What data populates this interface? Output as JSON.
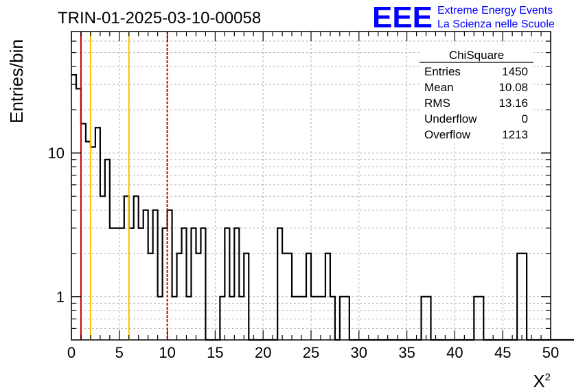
{
  "header": {
    "run_title": "TRIN-01-2025-03-10-00058",
    "logo_text": "EEE",
    "logo_line1": "Extreme Energy Events",
    "logo_line2": "La Scienza nelle Scuole"
  },
  "colors": {
    "red": "#cc0000",
    "orange": "#f5c400",
    "logo_blue": "#0000ff",
    "grid": "#b0b0b0"
  },
  "stats": {
    "title": "ChiSquare",
    "rows": [
      {
        "label": "Entries",
        "value": "1450"
      },
      {
        "label": "Mean",
        "value": "10.08"
      },
      {
        "label": "RMS",
        "value": "13.16"
      },
      {
        "label": "Underflow",
        "value": "0"
      },
      {
        "label": "Overflow",
        "value": "1213"
      }
    ]
  },
  "chart_data": {
    "type": "histogram",
    "title": "TRIN-01-2025-03-10-00058",
    "xlabel": "X",
    "xlabel_superscript": "2",
    "ylabel": "Entries/bin",
    "xlim": [
      0,
      50
    ],
    "ylim": [
      0.5,
      70
    ],
    "yscale": "log",
    "grid": true,
    "x_ticks": [
      "0",
      "5",
      "10",
      "15",
      "20",
      "25",
      "30",
      "35",
      "40",
      "45",
      "50"
    ],
    "y_ticks": [
      "1",
      "10"
    ],
    "bin_width": 0.5,
    "values": [
      35,
      28,
      16,
      12,
      11,
      15,
      5,
      9,
      3,
      3,
      3,
      5,
      3,
      5,
      3,
      4,
      2,
      4,
      1,
      3,
      4,
      1,
      2,
      3,
      1,
      3,
      2,
      3,
      0,
      0,
      0,
      1,
      3,
      1,
      3,
      1,
      2,
      0,
      0,
      0,
      0,
      0,
      0,
      3,
      2,
      2,
      1,
      1,
      1,
      2,
      1,
      1,
      1,
      2,
      1,
      0,
      1,
      1,
      0,
      0,
      0,
      0,
      0,
      0,
      0,
      0,
      0,
      0,
      0,
      0,
      0,
      0,
      0,
      1,
      1,
      0,
      0,
      0,
      0,
      0,
      0,
      0,
      0,
      0,
      1,
      1,
      0,
      0,
      0,
      0,
      0,
      0,
      0,
      2,
      2,
      0,
      0,
      0,
      0,
      0,
      0,
      0,
      0,
      0,
      0,
      0,
      0,
      0,
      0,
      0,
      0,
      0,
      0,
      0,
      0,
      0,
      0,
      0,
      0,
      0,
      0,
      0,
      0,
      0,
      0,
      0,
      0,
      0,
      0,
      0,
      0,
      0,
      0,
      0,
      0,
      0,
      0,
      0,
      0,
      0,
      0,
      0,
      0,
      0,
      0,
      0,
      0,
      0,
      0,
      0,
      0,
      0,
      0,
      0,
      0,
      0,
      0,
      0,
      0,
      0
    ],
    "vlines": [
      {
        "x": 1,
        "color": "#cc0000",
        "style": "solid"
      },
      {
        "x": 2,
        "color": "#f5c400",
        "style": "solid"
      },
      {
        "x": 6,
        "color": "#f5c400",
        "style": "solid"
      },
      {
        "x": 10,
        "color": "#cc0000",
        "style": "dashed"
      }
    ]
  }
}
